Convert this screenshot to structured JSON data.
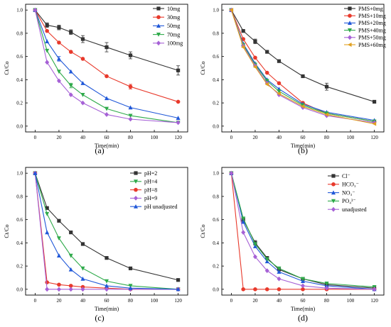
{
  "chart_data": [
    {
      "type": "line",
      "panel_label": "(a)",
      "xlabel": "Time(min)",
      "ylabel": "Ct/Co",
      "xlim": [
        -8,
        128
      ],
      "ylim": [
        -0.05,
        1.05
      ],
      "xticks": [
        0,
        20,
        40,
        60,
        80,
        100,
        120
      ],
      "yticks": [
        0.0,
        0.2,
        0.4,
        0.6,
        0.8,
        1.0
      ],
      "grid": false,
      "legend_position": "top-right",
      "x": [
        0,
        10,
        20,
        30,
        40,
        60,
        80,
        120
      ],
      "series": [
        {
          "name": "10mg",
          "color": "#333333",
          "marker": "square",
          "values": [
            1.0,
            0.87,
            0.85,
            0.81,
            0.75,
            0.68,
            0.61,
            0.48
          ],
          "errors": [
            0,
            0.02,
            0.02,
            0.02,
            0.03,
            0.04,
            0.03,
            0.04
          ]
        },
        {
          "name": "30mg",
          "color": "#e8392b",
          "marker": "circle",
          "values": [
            1.0,
            0.82,
            0.72,
            0.64,
            0.58,
            0.43,
            0.34,
            0.21
          ],
          "errors": [
            0,
            0,
            0,
            0,
            0,
            0,
            0.02,
            0
          ]
        },
        {
          "name": "50mg",
          "color": "#2058d8",
          "marker": "triangle",
          "values": [
            1.0,
            0.73,
            0.58,
            0.47,
            0.37,
            0.24,
            0.16,
            0.07
          ],
          "errors": [
            0,
            0,
            0.02,
            0,
            0,
            0,
            0,
            0
          ]
        },
        {
          "name": "70mg",
          "color": "#2eaa4a",
          "marker": "triangle-down",
          "values": [
            1.0,
            0.65,
            0.47,
            0.35,
            0.27,
            0.15,
            0.09,
            0.03
          ],
          "errors": [
            0,
            0,
            0,
            0.02,
            0,
            0,
            0,
            0
          ]
        },
        {
          "name": "100mg",
          "color": "#a661d6",
          "marker": "diamond",
          "values": [
            1.0,
            0.55,
            0.39,
            0.27,
            0.2,
            0.1,
            0.06,
            0.03
          ],
          "errors": [
            0,
            0,
            0,
            0,
            0,
            0,
            0,
            0
          ]
        }
      ]
    },
    {
      "type": "line",
      "panel_label": "(b)",
      "xlabel": "Time(min)",
      "ylabel": "Ct/Co",
      "xlim": [
        -8,
        128
      ],
      "ylim": [
        -0.05,
        1.05
      ],
      "xticks": [
        0,
        20,
        40,
        60,
        80,
        100,
        120
      ],
      "yticks": [
        0.0,
        0.2,
        0.4,
        0.6,
        0.8,
        1.0
      ],
      "grid": false,
      "legend_position": "top-right",
      "x": [
        0,
        10,
        20,
        30,
        40,
        60,
        80,
        120
      ],
      "series": [
        {
          "name": "PMS+0mg",
          "color": "#333333",
          "marker": "square",
          "values": [
            1.0,
            0.82,
            0.73,
            0.64,
            0.56,
            0.43,
            0.34,
            0.21
          ],
          "errors": [
            0,
            0,
            0.02,
            0,
            0,
            0,
            0.03,
            0
          ]
        },
        {
          "name": "PMS+10mg",
          "color": "#e8392b",
          "marker": "circle",
          "values": [
            1.0,
            0.75,
            0.59,
            0.46,
            0.37,
            0.2,
            0.11,
            0.04
          ],
          "errors": [
            0,
            0,
            0,
            0,
            0,
            0,
            0,
            0
          ]
        },
        {
          "name": "PMS+20mg",
          "color": "#2058d8",
          "marker": "triangle",
          "values": [
            1.0,
            0.71,
            0.54,
            0.4,
            0.32,
            0.19,
            0.12,
            0.05
          ],
          "errors": [
            0,
            0,
            0,
            0,
            0,
            0,
            0,
            0
          ]
        },
        {
          "name": "PMS+40mg",
          "color": "#2eaa4a",
          "marker": "triangle-down",
          "values": [
            1.0,
            0.7,
            0.53,
            0.39,
            0.3,
            0.18,
            0.11,
            0.04
          ],
          "errors": [
            0,
            0,
            0,
            0,
            0,
            0,
            0,
            0
          ]
        },
        {
          "name": "PMS+50mg",
          "color": "#a661d6",
          "marker": "diamond",
          "values": [
            1.0,
            0.69,
            0.52,
            0.37,
            0.27,
            0.16,
            0.09,
            0.03
          ],
          "errors": [
            0,
            0,
            0,
            0,
            0,
            0,
            0,
            0
          ]
        },
        {
          "name": "PMS+60mg",
          "color": "#e0a020",
          "marker": "triangle-left",
          "values": [
            1.0,
            0.68,
            0.51,
            0.36,
            0.28,
            0.17,
            0.1,
            0.02
          ],
          "errors": [
            0,
            0,
            0,
            0,
            0,
            0,
            0,
            0
          ]
        }
      ]
    },
    {
      "type": "line",
      "panel_label": "(c)",
      "xlabel": "Time(min)",
      "ylabel": "Ct/Co",
      "xlim": [
        -8,
        128
      ],
      "ylim": [
        -0.05,
        1.05
      ],
      "xticks": [
        0,
        20,
        40,
        60,
        80,
        100,
        120
      ],
      "yticks": [
        0.0,
        0.2,
        0.4,
        0.6,
        0.8,
        1.0
      ],
      "grid": false,
      "legend_position": "top-right",
      "x": [
        0,
        10,
        20,
        30,
        40,
        60,
        80,
        120
      ],
      "series": [
        {
          "name": "pH=2",
          "color": "#333333",
          "marker": "square",
          "values": [
            1.0,
            0.7,
            0.59,
            0.49,
            0.39,
            0.27,
            0.18,
            0.08
          ],
          "errors": [
            0,
            0,
            0,
            0,
            0,
            0,
            0,
            0
          ]
        },
        {
          "name": "pH=4",
          "color": "#2eaa4a",
          "marker": "triangle-down",
          "values": [
            1.0,
            0.65,
            0.44,
            0.29,
            0.18,
            0.07,
            0.03,
            0.0
          ],
          "errors": [
            0,
            0,
            0,
            0,
            0,
            0,
            0,
            0
          ]
        },
        {
          "name": "pH=8",
          "color": "#e8392b",
          "marker": "circle",
          "values": [
            1.0,
            0.06,
            0.04,
            0.03,
            0.02,
            0.01,
            0.0,
            0.0
          ],
          "errors": [
            0,
            0,
            0,
            0,
            0,
            0,
            0,
            0
          ]
        },
        {
          "name": "pH=9",
          "color": "#a661d6",
          "marker": "diamond",
          "values": [
            1.0,
            0.0,
            0.0,
            0.0,
            0.0,
            0.0,
            0.0,
            0.0
          ],
          "errors": [
            0,
            0,
            0,
            0,
            0,
            0,
            0,
            0
          ]
        },
        {
          "name": "pH unadjusted",
          "color": "#2058d8",
          "marker": "triangle",
          "values": [
            1.0,
            0.49,
            0.29,
            0.17,
            0.09,
            0.03,
            0.01,
            0.0
          ],
          "errors": [
            0,
            0,
            0,
            0,
            0,
            0,
            0,
            0
          ]
        }
      ]
    },
    {
      "type": "line",
      "panel_label": "(d)",
      "xlabel": "Time(min)",
      "ylabel": "Ct/Co",
      "xlim": [
        -8,
        128
      ],
      "ylim": [
        -0.05,
        1.05
      ],
      "xticks": [
        0,
        20,
        40,
        60,
        80,
        100,
        120
      ],
      "yticks": [
        0.0,
        0.2,
        0.4,
        0.6,
        0.8,
        1.0
      ],
      "grid": false,
      "legend_position": "top-right",
      "x": [
        0,
        10,
        20,
        30,
        40,
        60,
        80,
        120
      ],
      "series": [
        {
          "name": "Cl⁻",
          "color": "#333333",
          "marker": "square",
          "values": [
            1.0,
            0.6,
            0.4,
            0.27,
            0.17,
            0.09,
            0.04,
            0.01
          ],
          "errors": [
            0,
            0.02,
            0.02,
            0,
            0,
            0,
            0,
            0
          ]
        },
        {
          "name": "HCO₃⁻",
          "color": "#e8392b",
          "marker": "circle",
          "values": [
            1.0,
            0.0,
            0.0,
            0.0,
            0.0,
            0.0,
            0.0,
            0.0
          ],
          "errors": [
            0,
            0,
            0,
            0,
            0,
            0,
            0,
            0
          ]
        },
        {
          "name": "NO₃⁻",
          "color": "#2058d8",
          "marker": "triangle",
          "values": [
            1.0,
            0.58,
            0.37,
            0.24,
            0.15,
            0.07,
            0.03,
            0.0
          ],
          "errors": [
            0,
            0,
            0,
            0,
            0,
            0,
            0,
            0
          ]
        },
        {
          "name": "PO₄³⁻",
          "color": "#2eaa4a",
          "marker": "triangle-down",
          "values": [
            1.0,
            0.61,
            0.39,
            0.26,
            0.18,
            0.09,
            0.05,
            0.02
          ],
          "errors": [
            0,
            0,
            0,
            0,
            0,
            0,
            0,
            0
          ]
        },
        {
          "name": "unadjusted",
          "color": "#a661d6",
          "marker": "diamond",
          "values": [
            1.0,
            0.49,
            0.28,
            0.16,
            0.09,
            0.03,
            0.01,
            0.0
          ],
          "errors": [
            0,
            0,
            0,
            0,
            0,
            0,
            0,
            0
          ]
        }
      ]
    }
  ]
}
